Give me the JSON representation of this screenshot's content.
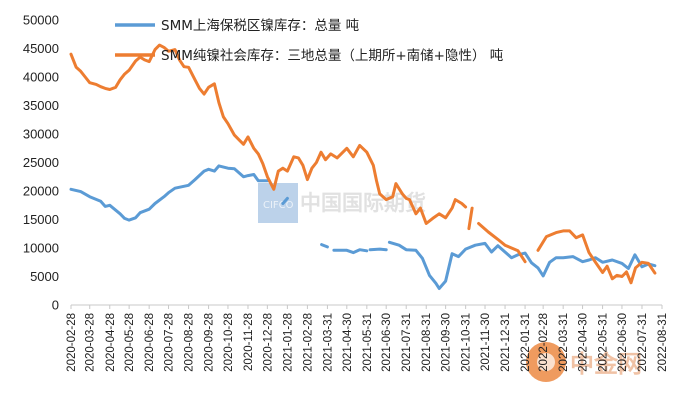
{
  "chart_data": {
    "type": "line",
    "ylim": [
      0,
      50000
    ],
    "yticks": [
      0,
      5000,
      10000,
      15000,
      20000,
      25000,
      30000,
      35000,
      40000,
      45000,
      50000
    ],
    "xlim": [
      "2020-02-28",
      "2022-08-31"
    ],
    "xticks": [
      "2020-02-28",
      "2020-03-28",
      "2020-04-28",
      "2020-05-28",
      "2020-06-28",
      "2020-07-28",
      "2020-08-28",
      "2020-09-28",
      "2020-10-28",
      "2020-11-28",
      "2020-12-28",
      "2021-01-28",
      "2021-02-28",
      "2021-03-31",
      "2021-04-30",
      "2021-05-31",
      "2021-06-30",
      "2021-07-31",
      "2021-08-31",
      "2021-09-30",
      "2021-10-31",
      "2021-11-30",
      "2021-12-31",
      "2022-01-31",
      "2022-02-28",
      "2022-03-31",
      "2022-04-30",
      "2022-05-31",
      "2022-06-30",
      "2022-07-31",
      "2022-08-31"
    ],
    "legend_position": "top",
    "grid": false,
    "series": [
      {
        "name": "SMM上海保税区镍库存：总量 吨",
        "color": "#5b9bd5",
        "segments": [
          [
            [
              "2020-02-28",
              20300
            ],
            [
              "2020-03-14",
              19900
            ],
            [
              "2020-03-28",
              19000
            ],
            [
              "2020-04-14",
              18200
            ],
            [
              "2020-04-21",
              17300
            ],
            [
              "2020-04-28",
              17500
            ],
            [
              "2020-05-14",
              16000
            ],
            [
              "2020-05-21",
              15200
            ],
            [
              "2020-05-28",
              14900
            ],
            [
              "2020-06-07",
              15300
            ],
            [
              "2020-06-14",
              16200
            ],
            [
              "2020-06-28",
              16800
            ],
            [
              "2020-07-07",
              17800
            ],
            [
              "2020-07-21",
              19000
            ],
            [
              "2020-07-28",
              19700
            ],
            [
              "2020-08-07",
              20500
            ],
            [
              "2020-08-28",
              21000
            ],
            [
              "2020-09-07",
              22000
            ],
            [
              "2020-09-21",
              23500
            ],
            [
              "2020-09-28",
              23800
            ],
            [
              "2020-10-07",
              23500
            ],
            [
              "2020-10-14",
              24400
            ],
            [
              "2020-10-28",
              24000
            ],
            [
              "2020-11-07",
              23900
            ],
            [
              "2020-11-21",
              22500
            ],
            [
              "2020-11-28",
              22700
            ],
            [
              "2020-12-07",
              22900
            ],
            [
              "2020-12-14",
              21800
            ],
            [
              "2020-12-28",
              21800
            ]
          ],
          [
            [
              "2021-01-21",
              17800
            ],
            [
              "2021-01-28",
              18700
            ]
          ],
          [
            [
              "2021-03-22",
              10600
            ],
            [
              "2021-03-31",
              10200
            ]
          ],
          [
            [
              "2021-04-10",
              9600
            ],
            [
              "2021-04-30",
              9600
            ],
            [
              "2021-05-10",
              9200
            ],
            [
              "2021-05-20",
              9700
            ],
            [
              "2021-05-31",
              9500
            ]
          ],
          [
            [
              "2021-06-05",
              9700
            ],
            [
              "2021-06-20",
              9800
            ],
            [
              "2021-06-30",
              9700
            ]
          ],
          [
            [
              "2021-07-05",
              11000
            ],
            [
              "2021-07-20",
              10500
            ],
            [
              "2021-07-31",
              9700
            ],
            [
              "2021-08-15",
              9600
            ],
            [
              "2021-08-25",
              8200
            ],
            [
              "2021-09-05",
              5200
            ],
            [
              "2021-09-15",
              3800
            ],
            [
              "2021-09-20",
              2900
            ],
            [
              "2021-09-30",
              4200
            ],
            [
              "2021-10-10",
              9000
            ],
            [
              "2021-10-20",
              8500
            ],
            [
              "2021-10-31",
              9800
            ],
            [
              "2021-11-15",
              10500
            ],
            [
              "2021-11-30",
              10800
            ],
            [
              "2021-12-10",
              9300
            ],
            [
              "2021-12-20",
              10400
            ],
            [
              "2021-12-31",
              9300
            ],
            [
              "2022-01-10",
              8300
            ],
            [
              "2022-01-20",
              8800
            ],
            [
              "2022-01-31",
              9100
            ],
            [
              "2022-02-10",
              7400
            ],
            [
              "2022-02-20",
              6500
            ],
            [
              "2022-02-28",
              5100
            ],
            [
              "2022-03-10",
              7500
            ],
            [
              "2022-03-20",
              8300
            ],
            [
              "2022-03-31",
              8300
            ],
            [
              "2022-04-15",
              8500
            ],
            [
              "2022-04-30",
              7600
            ],
            [
              "2022-05-10",
              7900
            ],
            [
              "2022-05-20",
              8300
            ],
            [
              "2022-05-31",
              7500
            ],
            [
              "2022-06-15",
              7900
            ],
            [
              "2022-06-30",
              7300
            ],
            [
              "2022-07-10",
              6400
            ],
            [
              "2022-07-20",
              8800
            ],
            [
              "2022-07-31",
              6700
            ],
            [
              "2022-08-10",
              7200
            ],
            [
              "2022-08-20",
              6900
            ]
          ]
        ]
      },
      {
        "name": "SMM纯镍社会库存：三地总量（上期所+南储+隐性） 吨",
        "color": "#ed7d31",
        "segments": [
          [
            [
              "2020-02-28",
              44000
            ],
            [
              "2020-03-07",
              41700
            ],
            [
              "2020-03-14",
              41000
            ],
            [
              "2020-03-21",
              40000
            ],
            [
              "2020-03-28",
              39000
            ],
            [
              "2020-04-07",
              38700
            ],
            [
              "2020-04-14",
              38300
            ],
            [
              "2020-04-21",
              38000
            ],
            [
              "2020-04-28",
              37800
            ],
            [
              "2020-05-07",
              38200
            ],
            [
              "2020-05-14",
              39500
            ],
            [
              "2020-05-21",
              40500
            ],
            [
              "2020-05-28",
              41200
            ],
            [
              "2020-06-07",
              42800
            ],
            [
              "2020-06-14",
              43500
            ],
            [
              "2020-06-21",
              43000
            ],
            [
              "2020-06-28",
              42700
            ],
            [
              "2020-07-07",
              44800
            ],
            [
              "2020-07-14",
              45600
            ],
            [
              "2020-07-21",
              45200
            ],
            [
              "2020-07-28",
              44500
            ],
            [
              "2020-08-07",
              44800
            ],
            [
              "2020-08-14",
              43000
            ],
            [
              "2020-08-21",
              41800
            ],
            [
              "2020-08-28",
              41700
            ],
            [
              "2020-09-07",
              39500
            ],
            [
              "2020-09-14",
              38000
            ],
            [
              "2020-09-21",
              37000
            ],
            [
              "2020-09-28",
              38200
            ],
            [
              "2020-10-07",
              38800
            ],
            [
              "2020-10-14",
              35500
            ],
            [
              "2020-10-21",
              33000
            ],
            [
              "2020-10-28",
              31800
            ],
            [
              "2020-11-07",
              29800
            ],
            [
              "2020-11-14",
              29000
            ],
            [
              "2020-11-21",
              28200
            ],
            [
              "2020-11-28",
              29500
            ],
            [
              "2020-12-07",
              27500
            ],
            [
              "2020-12-14",
              26500
            ],
            [
              "2020-12-21",
              24800
            ],
            [
              "2020-12-28",
              22500
            ],
            [
              "2021-01-07",
              20300
            ],
            [
              "2021-01-14",
              23500
            ],
            [
              "2021-01-21",
              24000
            ],
            [
              "2021-01-28",
              23500
            ],
            [
              "2021-02-07",
              26000
            ],
            [
              "2021-02-14",
              25800
            ],
            [
              "2021-02-21",
              24500
            ],
            [
              "2021-02-28",
              22000
            ],
            [
              "2021-03-07",
              24000
            ],
            [
              "2021-03-14",
              25000
            ],
            [
              "2021-03-21",
              26800
            ],
            [
              "2021-03-28",
              25500
            ],
            [
              "2021-04-05",
              26500
            ],
            [
              "2021-04-15",
              25800
            ],
            [
              "2021-04-30",
              27500
            ],
            [
              "2021-05-10",
              26000
            ],
            [
              "2021-05-20",
              28000
            ],
            [
              "2021-05-31",
              26800
            ],
            [
              "2021-06-10",
              24500
            ],
            [
              "2021-06-15",
              21800
            ],
            [
              "2021-06-20",
              19500
            ],
            [
              "2021-06-30",
              18500
            ],
            [
              "2021-07-10",
              19000
            ],
            [
              "2021-07-15",
              21300
            ],
            [
              "2021-07-25",
              19500
            ],
            [
              "2021-07-31",
              18700
            ],
            [
              "2021-08-05",
              18500
            ],
            [
              "2021-08-15",
              16000
            ],
            [
              "2021-08-22",
              17000
            ],
            [
              "2021-08-31",
              14300
            ],
            [
              "2021-09-10",
              15200
            ],
            [
              "2021-09-20",
              16000
            ],
            [
              "2021-09-30",
              15300
            ],
            [
              "2021-10-10",
              17000
            ],
            [
              "2021-10-15",
              18500
            ],
            [
              "2021-10-25",
              17800
            ],
            [
              "2021-10-31",
              17200
            ]
          ],
          [
            [
              "2021-11-05",
              13400
            ],
            [
              "2021-11-10",
              17000
            ]
          ],
          [
            [
              "2021-11-20",
              14300
            ],
            [
              "2021-12-05",
              12800
            ],
            [
              "2021-12-20",
              11500
            ],
            [
              "2021-12-31",
              10500
            ],
            [
              "2022-01-10",
              10000
            ],
            [
              "2022-01-20",
              9500
            ],
            [
              "2022-01-31",
              7600
            ]
          ],
          [
            [
              "2022-02-20",
              9600
            ],
            [
              "2022-03-05",
              12000
            ],
            [
              "2022-03-20",
              12700
            ],
            [
              "2022-03-31",
              13000
            ],
            [
              "2022-04-10",
              13000
            ],
            [
              "2022-04-20",
              11800
            ],
            [
              "2022-04-30",
              12300
            ],
            [
              "2022-05-10",
              9200
            ],
            [
              "2022-05-20",
              7500
            ],
            [
              "2022-05-31",
              5700
            ],
            [
              "2022-06-07",
              6800
            ],
            [
              "2022-06-15",
              4600
            ],
            [
              "2022-06-22",
              5200
            ],
            [
              "2022-06-30",
              5000
            ],
            [
              "2022-07-07",
              5800
            ],
            [
              "2022-07-14",
              3900
            ],
            [
              "2022-07-21",
              6500
            ],
            [
              "2022-07-31",
              7500
            ],
            [
              "2022-08-10",
              7300
            ],
            [
              "2022-08-20",
              5600
            ]
          ]
        ]
      }
    ]
  },
  "watermark": {
    "center_text": "中国国际期货",
    "logo_text": "CIFCO",
    "corner_text": "中金网"
  }
}
